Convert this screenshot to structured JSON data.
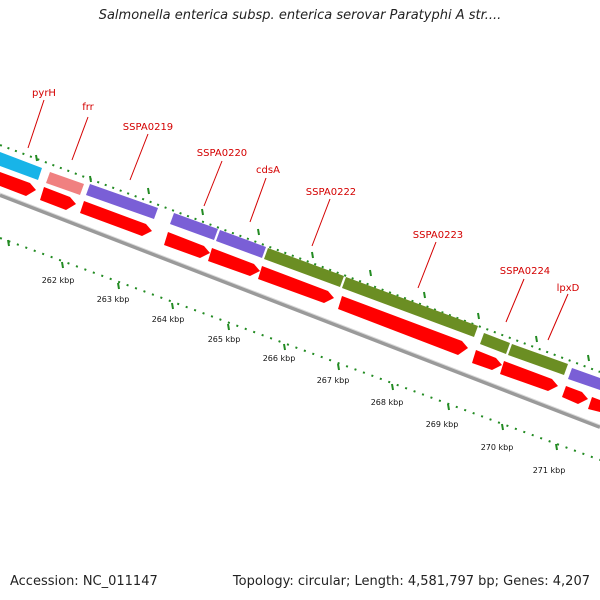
{
  "title": "Salmonella enterica subsp. enterica serovar Paratyphi A str....",
  "footer": {
    "accession": "Accession: NC_011147",
    "summary": "Topology: circular; Length: 4,581,797 bp; Genes: 4,207"
  },
  "colors": {
    "label": "#d40000",
    "cds_red": "#ff0000",
    "blue": "#7a5fd6",
    "green": "#6b8e23",
    "cyan": "#18b4e8",
    "pink": "#f08080",
    "ticks": "#228b22",
    "backbone": "#888888"
  },
  "genes": [
    {
      "name": "pyrH"
    },
    {
      "name": "frr"
    },
    {
      "name": "SSPA0219"
    },
    {
      "name": "SSPA0220"
    },
    {
      "name": "cdsA"
    },
    {
      "name": "SSPA0222"
    },
    {
      "name": "SSPA0223"
    },
    {
      "name": "SSPA0224"
    },
    {
      "name": "lpxD"
    }
  ],
  "scale_labels": [
    "262 kbp",
    "263 kbp",
    "264 kbp",
    "265 kbp",
    "266 kbp",
    "267 kbp",
    "268 kbp",
    "269 kbp",
    "270 kbp",
    "271 kbp"
  ]
}
